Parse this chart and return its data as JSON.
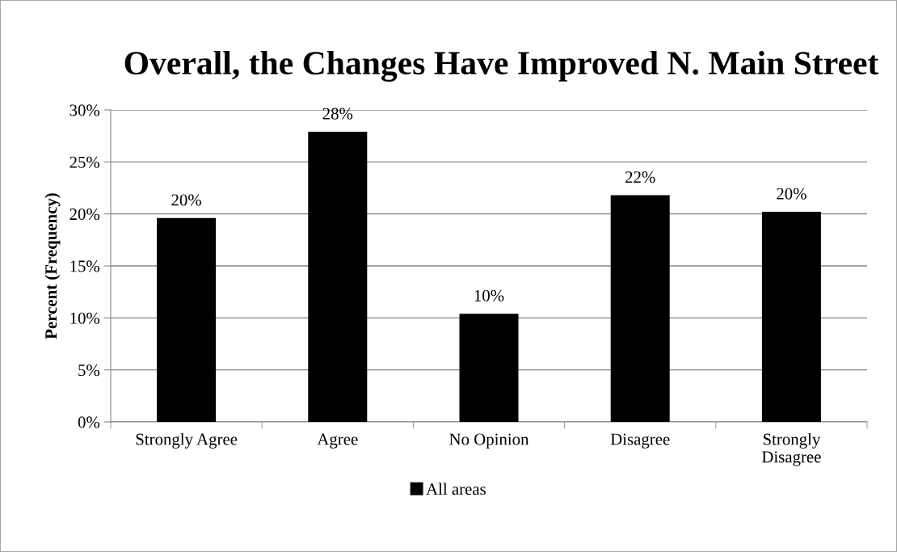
{
  "chart_data": {
    "type": "bar",
    "title": "Overall, the Changes Have Improved N. Main Street",
    "ylabel": "Percent (Frequency)",
    "categories": [
      "Strongly Agree",
      "Agree",
      "No Opinion",
      "Disagree",
      "Strongly\nDisagree"
    ],
    "series": [
      {
        "name": "All areas",
        "color": "#000000",
        "values": [
          19.6,
          27.9,
          10.4,
          21.8,
          20.2
        ],
        "value_labels": [
          "20%",
          "28%",
          "10%",
          "22%",
          "20%"
        ]
      }
    ],
    "ylim": [
      0,
      30
    ],
    "yticks": [
      {
        "value": 0,
        "label": "0%"
      },
      {
        "value": 5,
        "label": "5%"
      },
      {
        "value": 10,
        "label": "10%"
      },
      {
        "value": 15,
        "label": "15%"
      },
      {
        "value": 20,
        "label": "20%"
      },
      {
        "value": 25,
        "label": "25%"
      },
      {
        "value": 30,
        "label": "30%"
      }
    ],
    "grid": "y",
    "legend": "bottom"
  }
}
